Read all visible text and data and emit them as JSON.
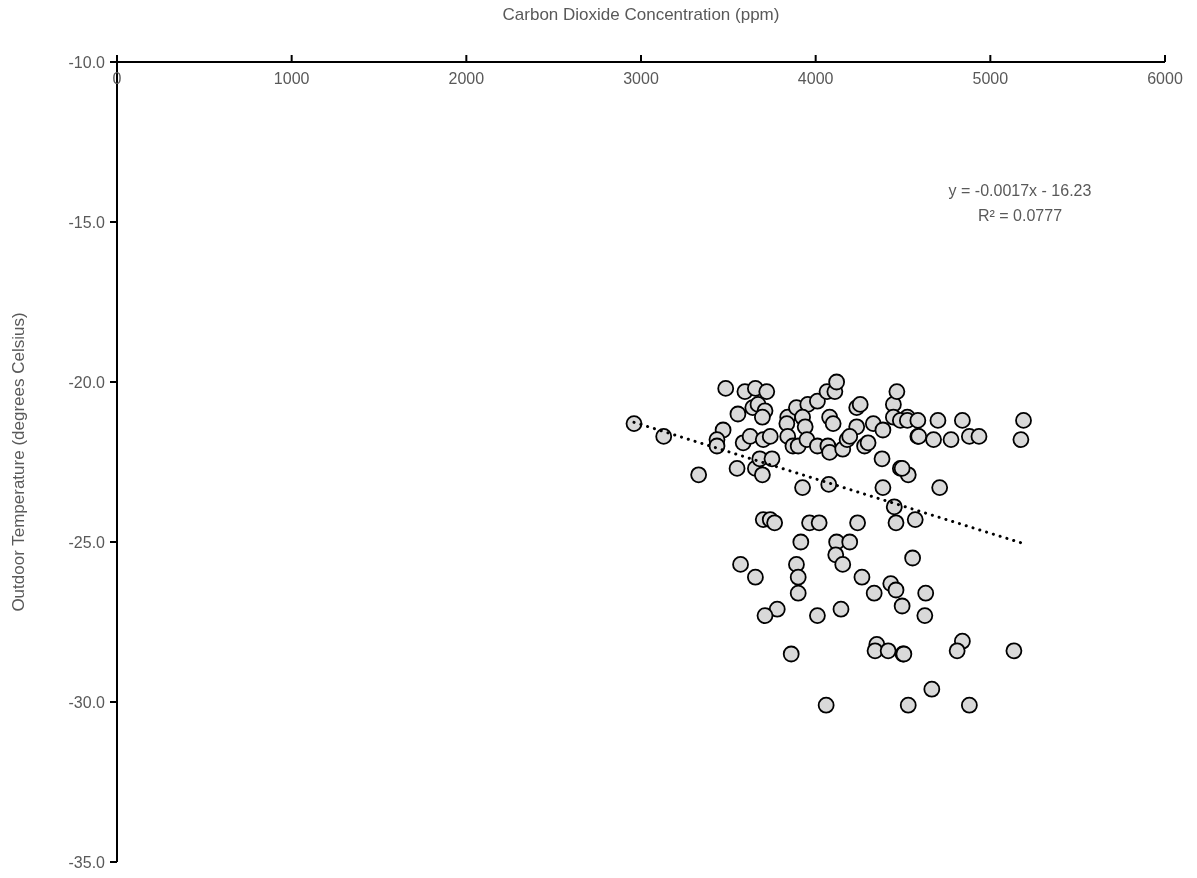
{
  "chart_data": {
    "type": "scatter",
    "xlabel": "Carbon Dioxide Concentration (ppm)",
    "ylabel": "Outdoor Temperature (degrees Celsius)",
    "xlim": [
      0,
      6000
    ],
    "xticks": [
      0,
      1000,
      2000,
      3000,
      4000,
      5000,
      6000
    ],
    "ylim": [
      -35,
      -10
    ],
    "yticks": [
      {
        "value": -35,
        "label": "-35.0"
      },
      {
        "value": -30,
        "label": "-30.0"
      },
      {
        "value": -25,
        "label": "-25.0"
      },
      {
        "value": -20,
        "label": "-20.0"
      },
      {
        "value": -15,
        "label": "-15.0"
      },
      {
        "value": -10,
        "label": "-10.0"
      }
    ],
    "grid": false,
    "annotations": [
      "y = -0.0017x - 16.23",
      "R² = 0.0777"
    ],
    "series": [
      {
        "color": "#d9d9d9",
        "marker": "circle",
        "x": [
          3485,
          3595,
          3655,
          3720,
          3555,
          3640,
          3670,
          3710,
          3695,
          3840,
          3890,
          3955,
          4010,
          4065,
          4110,
          4120,
          4080,
          4100,
          3925,
          3835,
          3940,
          4235,
          4255,
          4235,
          4330,
          4385,
          4445,
          4465,
          4445,
          4525,
          4585,
          2960,
          3130,
          3470,
          3435,
          3435,
          3585,
          3625,
          3700,
          3740,
          3840,
          3870,
          3900,
          3950,
          4010,
          4070,
          4080,
          4155,
          4180,
          4195,
          4280,
          4300,
          4380,
          4485,
          4530,
          3330,
          3550,
          3655,
          3680,
          3750,
          3695,
          3925,
          4075,
          4385,
          4450,
          3700,
          3740,
          3765,
          3965,
          4020,
          4240,
          4460,
          3915,
          4120,
          4195,
          4485,
          4525,
          4585,
          4700,
          4840,
          5190,
          4590,
          4675,
          4775,
          4880,
          4935,
          5175,
          4495,
          4710,
          4570,
          3570,
          3655,
          3890,
          3900,
          3900,
          4115,
          4155,
          4265,
          4335,
          4430,
          4460,
          4495,
          4555,
          3780,
          3710,
          4010,
          4145,
          3860,
          4350,
          4340,
          4415,
          4500,
          4060,
          4530,
          4630,
          4625,
          4505,
          4840,
          4810,
          5135,
          4665,
          4880
        ],
        "values": [
          -20.2,
          -20.3,
          -20.2,
          -20.3,
          -21.0,
          -20.8,
          -20.7,
          -20.9,
          -21.1,
          -21.1,
          -20.8,
          -20.7,
          -20.6,
          -20.3,
          -20.3,
          -20.0,
          -21.1,
          -21.3,
          -21.1,
          -21.3,
          -21.4,
          -20.8,
          -20.7,
          -21.4,
          -21.3,
          -21.5,
          -20.7,
          -20.3,
          -21.1,
          -21.1,
          -21.7,
          -21.3,
          -21.7,
          -21.5,
          -21.8,
          -22.0,
          -21.9,
          -21.7,
          -21.8,
          -21.7,
          -21.7,
          -22.0,
          -22.0,
          -21.8,
          -22.0,
          -22.0,
          -22.2,
          -22.1,
          -21.8,
          -21.7,
          -22.0,
          -21.9,
          -22.4,
          -22.7,
          -22.9,
          -22.9,
          -22.7,
          -22.7,
          -22.4,
          -22.4,
          -22.9,
          -23.3,
          -23.2,
          -23.3,
          -23.9,
          -24.3,
          -24.3,
          -24.4,
          -24.4,
          -24.4,
          -24.4,
          -24.4,
          -25.0,
          -25.0,
          -25.0,
          -21.2,
          -21.2,
          -21.2,
          -21.2,
          -21.2,
          -21.2,
          -21.7,
          -21.8,
          -21.8,
          -21.7,
          -21.7,
          -21.8,
          -22.7,
          -23.3,
          -24.3,
          -25.7,
          -26.1,
          -25.7,
          -26.1,
          -26.6,
          -25.4,
          -25.7,
          -26.1,
          -26.6,
          -26.3,
          -26.5,
          -27.0,
          -25.5,
          -27.1,
          -27.3,
          -27.3,
          -27.1,
          -28.5,
          -28.2,
          -28.4,
          -28.4,
          -28.5,
          -30.1,
          -30.1,
          -26.6,
          -27.3,
          -28.5,
          -28.1,
          -28.4,
          -28.4,
          -29.6,
          -30.1
        ]
      },
      {
        "type": "line",
        "color": "#000000",
        "line_style": "dotted",
        "marker": "none",
        "x": [
          2960,
          5190
        ],
        "values": [
          -21.26,
          -25.05
        ]
      }
    ]
  }
}
